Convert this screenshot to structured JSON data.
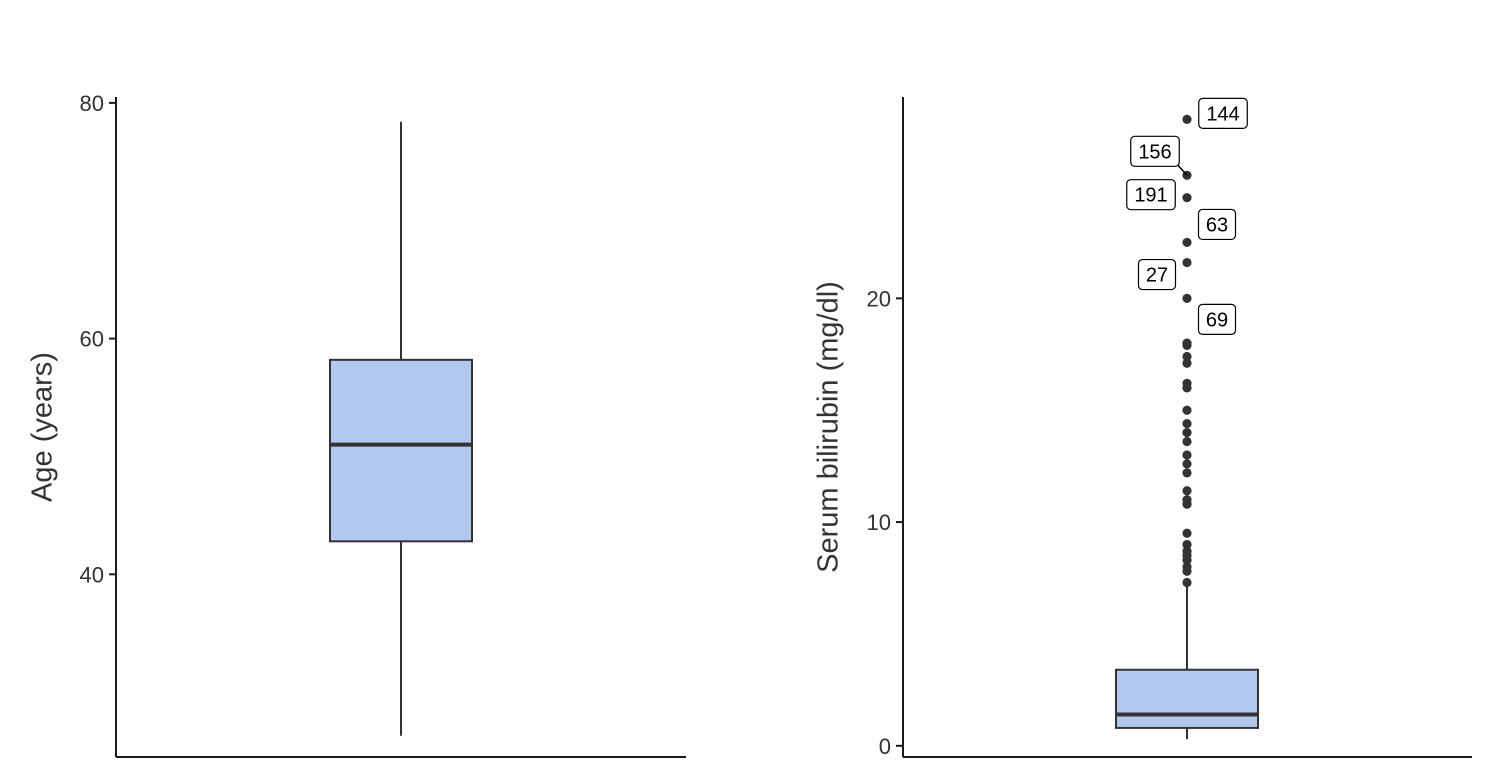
{
  "chart_data": [
    {
      "type": "box",
      "title": "",
      "xlabel": "",
      "ylabel": "Age (years)",
      "ylim": [
        24.5,
        80.5
      ],
      "yticks": [
        40,
        60,
        80
      ],
      "box": {
        "min": 26.3,
        "q1": 42.8,
        "median": 51.0,
        "q3": 58.2,
        "max": 78.4
      },
      "outliers": [],
      "fill_color": "#b3c8ef"
    },
    {
      "type": "box",
      "title": "",
      "xlabel": "",
      "ylabel": "Serum bilirubin (mg/dl)",
      "ylim": [
        -0.5,
        29.0
      ],
      "yticks": [
        0,
        10,
        20
      ],
      "box": {
        "min": 0.3,
        "q1": 0.8,
        "median": 1.4,
        "q3": 3.4,
        "max": 7.1
      },
      "outliers": [
        7.3,
        7.8,
        8.0,
        8.3,
        8.5,
        8.7,
        9.0,
        9.5,
        10.8,
        11.0,
        11.4,
        12.2,
        12.6,
        13.0,
        13.6,
        14.0,
        14.4,
        15.0,
        16.0,
        16.2,
        17.1,
        17.4,
        17.9,
        18.0,
        20.0,
        21.6,
        22.5,
        24.5,
        25.5,
        28.0
      ],
      "labeled_points": [
        {
          "label": "144",
          "y": 28.0
        },
        {
          "label": "156",
          "y": 25.5
        },
        {
          "label": "191",
          "y": 24.5
        },
        {
          "label": "63",
          "y": 22.5
        },
        {
          "label": "27",
          "y": 21.6
        },
        {
          "label": "69",
          "y": 20.0
        }
      ],
      "fill_color": "#b3c8ef"
    }
  ]
}
